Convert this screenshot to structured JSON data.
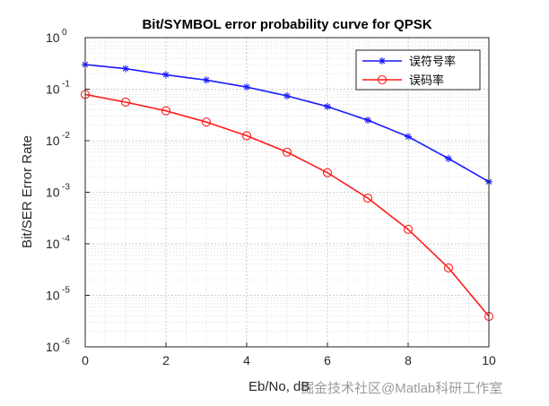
{
  "chart_data": {
    "type": "line",
    "title": "Bit/SYMBOL error probability curve for QPSK",
    "xlabel": "Eb/No, dB",
    "ylabel": "Bit/SER Error Rate",
    "xlim": [
      0,
      10
    ],
    "ylim": [
      1e-06,
      1
    ],
    "yscale": "log",
    "x_ticks": [
      0,
      2,
      4,
      6,
      8,
      10
    ],
    "y_ticks": [
      {
        "value": 1,
        "base": "10",
        "exp": "0"
      },
      {
        "value": 0.1,
        "base": "10",
        "exp": "-1"
      },
      {
        "value": 0.01,
        "base": "10",
        "exp": "-2"
      },
      {
        "value": 0.001,
        "base": "10",
        "exp": "-3"
      },
      {
        "value": 0.0001,
        "base": "10",
        "exp": "-4"
      },
      {
        "value": 1e-05,
        "base": "10",
        "exp": "-5"
      },
      {
        "value": 1e-06,
        "base": "10",
        "exp": "-6"
      }
    ],
    "grid": true,
    "minor_grid": true,
    "legend_position": "top-right",
    "series": [
      {
        "name": "误符号率",
        "color": "#1a1aff",
        "marker": "asterisk",
        "x": [
          0,
          1,
          2,
          3,
          4,
          5,
          6,
          7,
          8,
          9,
          10
        ],
        "values": [
          0.3,
          0.25,
          0.19,
          0.15,
          0.11,
          0.074,
          0.046,
          0.025,
          0.012,
          0.0045,
          0.0016
        ]
      },
      {
        "name": "误码率",
        "color": "#ff1a1a",
        "marker": "circle",
        "x": [
          0,
          1,
          2,
          3,
          4,
          5,
          6,
          7,
          8,
          9,
          10
        ],
        "values": [
          0.079,
          0.056,
          0.038,
          0.023,
          0.0125,
          0.006,
          0.0024,
          0.00077,
          0.00019,
          3.4e-05,
          3.9e-06
        ]
      }
    ]
  },
  "watermark": "掘金技术社区@Matlab科研工作室"
}
